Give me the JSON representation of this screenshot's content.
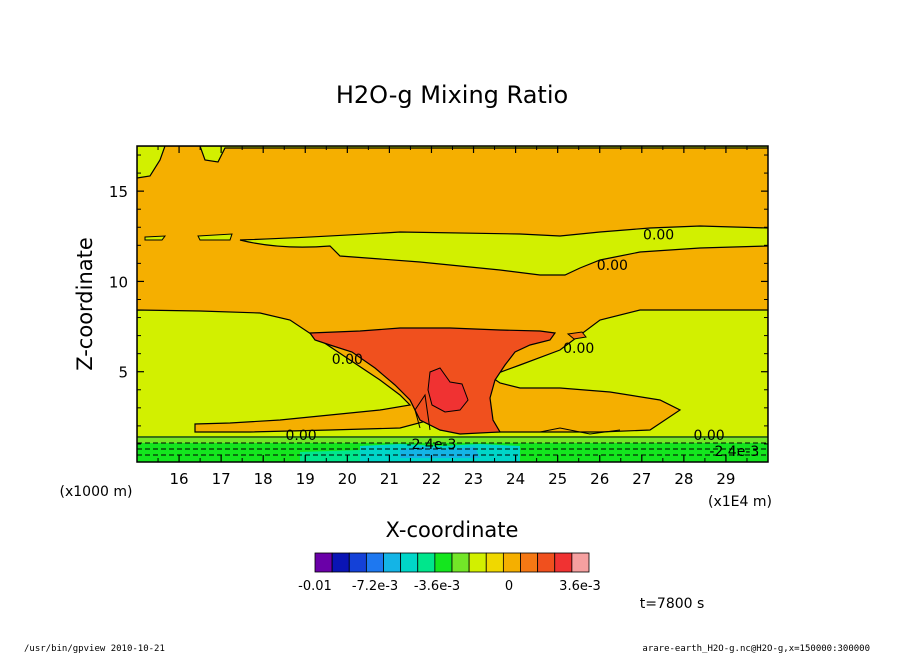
{
  "chart_data": {
    "type": "contour",
    "title": "H2O-g Mixing Ratio",
    "xlabel": "X-coordinate",
    "ylabel": "Z-coordinate",
    "x_scale_label": "(x1E4 m)",
    "y_scale_label": "(x1000 m)",
    "xlim": [
      15,
      30
    ],
    "ylim": [
      0,
      17.5
    ],
    "x_ticks": [
      "16",
      "17",
      "18",
      "19",
      "20",
      "21",
      "22",
      "23",
      "24",
      "25",
      "26",
      "27",
      "28",
      "29"
    ],
    "y_ticks": [
      "5",
      "10",
      "15"
    ],
    "contour_labels": [
      {
        "text": "0.00",
        "x": 27.4,
        "z": 12.6
      },
      {
        "text": "0.00",
        "x": 26.3,
        "z": 10.9
      },
      {
        "text": "0.00",
        "x": 20.0,
        "z": 5.7
      },
      {
        "text": "0.00",
        "x": 25.5,
        "z": 6.3
      },
      {
        "text": "0.00",
        "x": 18.9,
        "z": 1.5
      },
      {
        "text": "0.00",
        "x": 28.6,
        "z": 1.5
      },
      {
        "text": "-2.4e-3",
        "x": 22.0,
        "z": 1.0
      },
      {
        "text": "-2.4e-3",
        "x": 29.2,
        "z": 0.6
      }
    ],
    "colorbar": {
      "colors": [
        "#6a00a8",
        "#0a14b4",
        "#1441d8",
        "#1e78f0",
        "#14b4e6",
        "#00d6c8",
        "#00e68c",
        "#14e61e",
        "#73e628",
        "#d2f000",
        "#f0d800",
        "#f5af00",
        "#f57814",
        "#f0501e",
        "#f03232",
        "#f5a0a0"
      ],
      "labels": [
        "-0.01",
        "-7.2e-3",
        "-3.6e-3",
        "0",
        "3.6e-3"
      ]
    },
    "time_label": "t=7800 s"
  },
  "footer": {
    "left": "/usr/bin/gpview  2010-10-21",
    "right": "arare-earth_H2O-g.nc@H2O-g,x=150000:300000"
  }
}
